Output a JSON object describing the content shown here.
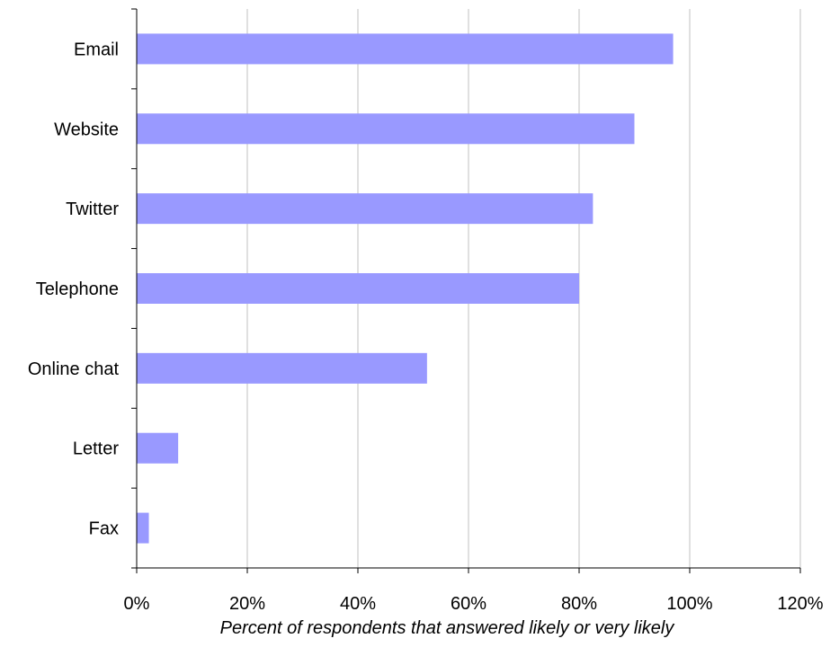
{
  "chart_data": {
    "type": "bar",
    "orientation": "horizontal",
    "categories": [
      "Email",
      "Website",
      "Twitter",
      "Telephone",
      "Online chat",
      "Letter",
      "Fax"
    ],
    "values": [
      97,
      90,
      82.5,
      80,
      52.5,
      7.5,
      2.2
    ],
    "title": "",
    "xlabel": "Percent of respondents that answered likely or very likely",
    "ylabel": "",
    "xlim": [
      0,
      120
    ],
    "x_ticks": [
      0,
      20,
      40,
      60,
      80,
      100,
      120
    ],
    "x_tick_labels": [
      "0%",
      "20%",
      "40%",
      "60%",
      "80%",
      "100%",
      "120%"
    ],
    "grid": "vertical",
    "legend": "none",
    "bar_color": "#9999ff",
    "grid_color": "#c0c0c0",
    "axis_color": "#000000"
  }
}
